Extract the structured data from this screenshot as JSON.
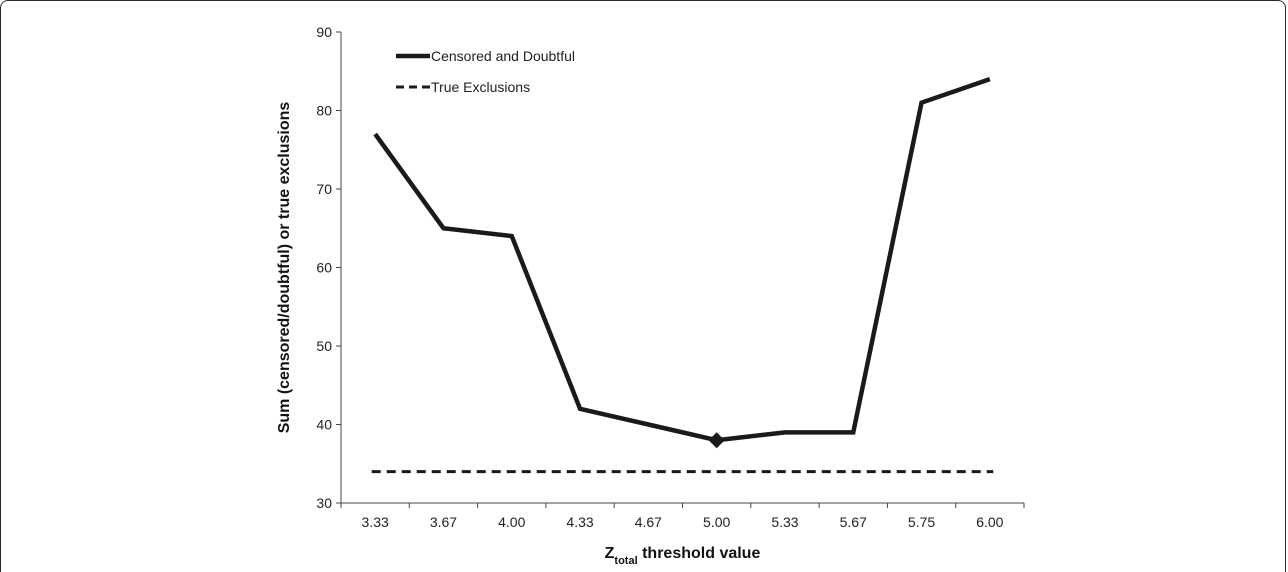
{
  "chart_data": {
    "type": "line",
    "categories": [
      "3.33",
      "3.67",
      "4.00",
      "4.33",
      "4.67",
      "5.00",
      "5.33",
      "5.67",
      "5.75",
      "6.00"
    ],
    "series": [
      {
        "name": "Censored and Doubtful",
        "values": [
          77,
          65,
          64,
          42,
          40,
          38,
          39,
          39,
          81,
          84
        ],
        "style": "solid",
        "color": "#1a1a1a",
        "marker_at": "5.00"
      },
      {
        "name": "True Exclusions",
        "values": [
          34,
          34,
          34,
          34,
          34,
          34,
          34,
          34,
          34,
          34
        ],
        "style": "dashed",
        "color": "#1a1a1a"
      }
    ],
    "ylim": [
      30,
      90
    ],
    "yticks": [
      30,
      40,
      50,
      60,
      70,
      80,
      90
    ],
    "ylabel": "Sum (censored/doubtful) or true exclusions",
    "xlabel_main": "Z",
    "xlabel_sub": "total",
    "xlabel_rest": " threshold value",
    "legend_position": "top-left",
    "grid": false
  }
}
